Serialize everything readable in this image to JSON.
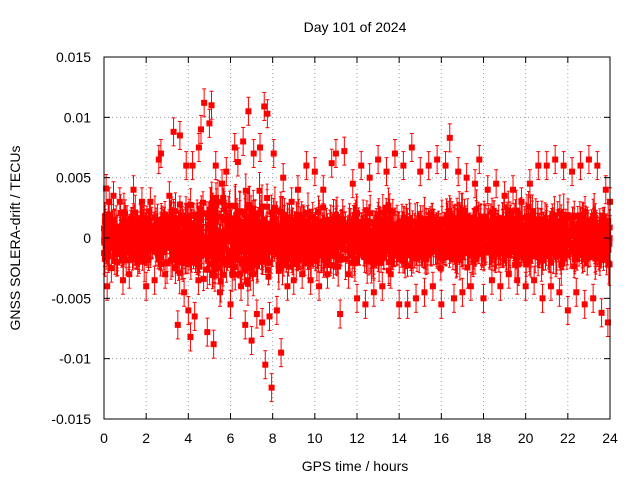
{
  "chart_data": {
    "type": "scatter",
    "title": "Day 101 of 2024",
    "xlabel": "GPS time / hours",
    "ylabel": "GNSS SOLERA-drift / TECUs",
    "xlim": [
      0,
      24
    ],
    "ylim": [
      -0.015,
      0.015
    ],
    "xticks": [
      "0",
      "2",
      "4",
      "6",
      "8",
      "10",
      "12",
      "14",
      "16",
      "18",
      "20",
      "22",
      "24"
    ],
    "yticks": [
      "-0.015",
      "-0.01",
      "-0.005",
      "0",
      "0.005",
      "0.01",
      "0.015"
    ],
    "grid": true,
    "series_color": "#ff0000",
    "error_bars": true,
    "points": [
      [
        0.0,
        0.0008
      ],
      [
        0.05,
        -0.0012
      ],
      [
        0.1,
        0.0041
      ],
      [
        0.15,
        -0.004
      ],
      [
        0.25,
        0.003
      ],
      [
        0.35,
        -0.0025
      ],
      [
        0.45,
        0.0035
      ],
      [
        0.6,
        -0.002
      ],
      [
        0.75,
        0.003
      ],
      [
        0.9,
        -0.0035
      ],
      [
        1.0,
        0.002
      ],
      [
        1.2,
        -0.003
      ],
      [
        1.4,
        0.004
      ],
      [
        1.6,
        -0.002
      ],
      [
        1.8,
        0.003
      ],
      [
        2.0,
        -0.004
      ],
      [
        2.2,
        0.003
      ],
      [
        2.4,
        -0.0035
      ],
      [
        2.6,
        0.0065
      ],
      [
        2.7,
        0.007
      ],
      [
        2.9,
        -0.003
      ],
      [
        3.1,
        0.0035
      ],
      [
        3.3,
        0.0088
      ],
      [
        3.5,
        -0.0072
      ],
      [
        3.6,
        0.0085
      ],
      [
        3.8,
        -0.0045
      ],
      [
        3.9,
        0.006
      ],
      [
        4.0,
        -0.006
      ],
      [
        4.1,
        -0.0082
      ],
      [
        4.2,
        0.006
      ],
      [
        4.3,
        -0.0065
      ],
      [
        4.5,
        0.0075
      ],
      [
        4.6,
        0.009
      ],
      [
        4.75,
        0.0112
      ],
      [
        4.9,
        -0.0078
      ],
      [
        5.0,
        0.0095
      ],
      [
        5.1,
        0.011
      ],
      [
        5.2,
        -0.0088
      ],
      [
        5.3,
        0.006
      ],
      [
        5.5,
        -0.0045
      ],
      [
        5.6,
        0.0045
      ],
      [
        5.8,
        0.0055
      ],
      [
        6.0,
        -0.0055
      ],
      [
        6.2,
        0.0075
      ],
      [
        6.35,
        0.0063
      ],
      [
        6.5,
        -0.004
      ],
      [
        6.6,
        0.008
      ],
      [
        6.7,
        -0.0072
      ],
      [
        6.85,
        0.0105
      ],
      [
        7.0,
        -0.0085
      ],
      [
        7.1,
        0.007
      ],
      [
        7.25,
        -0.0063
      ],
      [
        7.4,
        0.0075
      ],
      [
        7.5,
        -0.007
      ],
      [
        7.6,
        0.0109
      ],
      [
        7.65,
        -0.0105
      ],
      [
        7.75,
        0.0103
      ],
      [
        7.85,
        -0.0065
      ],
      [
        7.95,
        -0.0124
      ],
      [
        8.05,
        0.007
      ],
      [
        8.2,
        -0.006
      ],
      [
        8.4,
        -0.0095
      ],
      [
        8.5,
        0.005
      ],
      [
        8.7,
        -0.004
      ],
      [
        8.9,
        0.003
      ],
      [
        9.0,
        -0.0035
      ],
      [
        9.2,
        0.004
      ],
      [
        9.4,
        -0.003
      ],
      [
        9.6,
        0.006
      ],
      [
        9.8,
        -0.0035
      ],
      [
        10.0,
        0.0055
      ],
      [
        10.2,
        -0.004
      ],
      [
        10.4,
        0.004
      ],
      [
        10.6,
        -0.003
      ],
      [
        10.8,
        0.0062
      ],
      [
        11.0,
        0.007
      ],
      [
        11.2,
        -0.0063
      ],
      [
        11.4,
        0.0072
      ],
      [
        11.6,
        -0.003
      ],
      [
        11.8,
        0.0045
      ],
      [
        12.0,
        -0.005
      ],
      [
        12.2,
        0.006
      ],
      [
        12.4,
        -0.0055
      ],
      [
        12.6,
        0.005
      ],
      [
        12.8,
        -0.0045
      ],
      [
        13.0,
        0.0065
      ],
      [
        13.2,
        -0.004
      ],
      [
        13.4,
        0.0055
      ],
      [
        13.6,
        -0.003
      ],
      [
        13.8,
        0.007
      ],
      [
        14.0,
        -0.0055
      ],
      [
        14.2,
        0.006
      ],
      [
        14.4,
        -0.0055
      ],
      [
        14.6,
        0.0075
      ],
      [
        14.8,
        -0.005
      ],
      [
        15.0,
        0.0055
      ],
      [
        15.2,
        -0.0045
      ],
      [
        15.4,
        0.006
      ],
      [
        15.6,
        -0.004
      ],
      [
        15.8,
        0.0065
      ],
      [
        16.0,
        -0.0055
      ],
      [
        16.2,
        0.006
      ],
      [
        16.4,
        0.0083
      ],
      [
        16.6,
        -0.005
      ],
      [
        16.8,
        0.0055
      ],
      [
        17.0,
        -0.0045
      ],
      [
        17.2,
        0.005
      ],
      [
        17.4,
        -0.004
      ],
      [
        17.6,
        0.0045
      ],
      [
        17.8,
        0.0065
      ],
      [
        18.0,
        -0.005
      ],
      [
        18.2,
        0.004
      ],
      [
        18.4,
        -0.0035
      ],
      [
        18.6,
        0.0045
      ],
      [
        18.8,
        -0.004
      ],
      [
        19.0,
        0.0035
      ],
      [
        19.2,
        -0.003
      ],
      [
        19.4,
        0.004
      ],
      [
        19.6,
        -0.0035
      ],
      [
        19.8,
        0.003
      ],
      [
        20.0,
        -0.004
      ],
      [
        20.2,
        0.0045
      ],
      [
        20.4,
        -0.0035
      ],
      [
        20.6,
        0.006
      ],
      [
        20.8,
        -0.005
      ],
      [
        21.0,
        0.006
      ],
      [
        21.2,
        -0.004
      ],
      [
        21.4,
        0.0065
      ],
      [
        21.6,
        -0.0045
      ],
      [
        21.8,
        0.006
      ],
      [
        22.0,
        -0.006
      ],
      [
        22.2,
        0.0055
      ],
      [
        22.4,
        -0.0045
      ],
      [
        22.6,
        0.006
      ],
      [
        22.8,
        -0.0055
      ],
      [
        23.0,
        0.0065
      ],
      [
        23.2,
        -0.005
      ],
      [
        23.4,
        0.006
      ],
      [
        23.6,
        -0.0062
      ],
      [
        23.8,
        0.004
      ],
      [
        23.9,
        -0.007
      ],
      [
        24.0,
        0.003
      ]
    ]
  }
}
